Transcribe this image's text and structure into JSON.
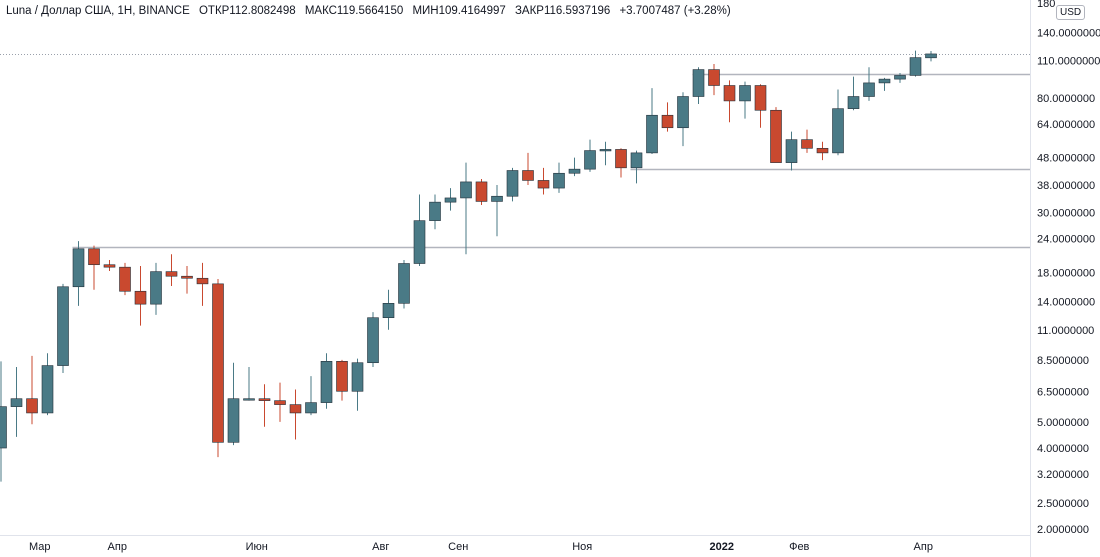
{
  "legend": {
    "symbol": "Luna / Доллар США, 1Н, BINANCE",
    "open": "ОТКР112.8082498",
    "high": "МАКС119.5664150",
    "low": "МИН109.4164997",
    "close": "ЗАКР116.5937196",
    "change": "+3.7007487 (+3.28%)"
  },
  "currency": "USD",
  "colors": {
    "up": "#4a7a86",
    "down": "#c9492f",
    "grid_line": "#b2b5be",
    "text": "#131722"
  },
  "chart_data": {
    "type": "candlestick",
    "scale": "log",
    "ylim": [
      1.9,
      185
    ],
    "y_ticks": [
      {
        "v": 180,
        "label": "180"
      },
      {
        "v": 140,
        "label": "140.0000000"
      },
      {
        "v": 110,
        "label": "110.0000000"
      },
      {
        "v": 80,
        "label": "80.0000000"
      },
      {
        "v": 64,
        "label": "64.0000000"
      },
      {
        "v": 48,
        "label": "48.0000000"
      },
      {
        "v": 38,
        "label": "38.0000000"
      },
      {
        "v": 30,
        "label": "30.0000000"
      },
      {
        "v": 24,
        "label": "24.0000000"
      },
      {
        "v": 18,
        "label": "18.0000000"
      },
      {
        "v": 14,
        "label": "14.0000000"
      },
      {
        "v": 11,
        "label": "11.0000000"
      },
      {
        "v": 8.5,
        "label": "8.5000000"
      },
      {
        "v": 6.5,
        "label": "6.5000000"
      },
      {
        "v": 5,
        "label": "5.0000000"
      },
      {
        "v": 4,
        "label": "4.0000000"
      },
      {
        "v": 3.2,
        "label": "3.2000000"
      },
      {
        "v": 2.5,
        "label": "2.5000000"
      },
      {
        "v": 2,
        "label": "2.0000000"
      }
    ],
    "x_ticks": [
      {
        "i": 2.5,
        "label": "Мар"
      },
      {
        "i": 7.5,
        "label": "Апр"
      },
      {
        "i": 16.5,
        "label": "Июн"
      },
      {
        "i": 24.5,
        "label": "Авг"
      },
      {
        "i": 29.5,
        "label": "Сен"
      },
      {
        "i": 37.5,
        "label": "Ноя"
      },
      {
        "i": 46.5,
        "label": "2022",
        "bold": true
      },
      {
        "i": 51.5,
        "label": "Фев"
      },
      {
        "i": 59.5,
        "label": "Апр"
      }
    ],
    "hlines": [
      {
        "v": 22.3,
        "from": 5
      },
      {
        "v": 43.5,
        "from": 41
      },
      {
        "v": 98.5,
        "from": 45
      }
    ],
    "last_price": 116.6,
    "candles": [
      {
        "o": 4.0,
        "h": 8.4,
        "l": 3.0,
        "c": 5.7
      },
      {
        "o": 5.7,
        "h": 8.0,
        "l": 4.4,
        "c": 6.1
      },
      {
        "o": 6.1,
        "h": 8.8,
        "l": 4.9,
        "c": 5.4
      },
      {
        "o": 5.4,
        "h": 9.0,
        "l": 5.3,
        "c": 8.1
      },
      {
        "o": 8.1,
        "h": 16.3,
        "l": 7.6,
        "c": 15.9
      },
      {
        "o": 15.9,
        "h": 23.5,
        "l": 13.5,
        "c": 22.0
      },
      {
        "o": 22.0,
        "h": 22.6,
        "l": 15.5,
        "c": 19.2
      },
      {
        "o": 19.2,
        "h": 20.0,
        "l": 18.2,
        "c": 18.8
      },
      {
        "o": 18.8,
        "h": 19.5,
        "l": 14.8,
        "c": 15.3
      },
      {
        "o": 15.3,
        "h": 19.0,
        "l": 11.4,
        "c": 13.7
      },
      {
        "o": 13.7,
        "h": 19.5,
        "l": 12.5,
        "c": 18.1
      },
      {
        "o": 18.1,
        "h": 21.0,
        "l": 16.0,
        "c": 17.4
      },
      {
        "o": 17.4,
        "h": 19.0,
        "l": 15.0,
        "c": 17.1
      },
      {
        "o": 17.1,
        "h": 19.5,
        "l": 13.5,
        "c": 16.3
      },
      {
        "o": 16.3,
        "h": 17.0,
        "l": 3.7,
        "c": 4.2
      },
      {
        "o": 4.2,
        "h": 8.3,
        "l": 4.1,
        "c": 6.1
      },
      {
        "o": 6.1,
        "h": 8.0,
        "l": 6.0,
        "c": 6.1
      },
      {
        "o": 6.1,
        "h": 6.9,
        "l": 4.8,
        "c": 6.0
      },
      {
        "o": 6.0,
        "h": 7.0,
        "l": 5.0,
        "c": 5.8
      },
      {
        "o": 5.8,
        "h": 6.6,
        "l": 4.3,
        "c": 5.4
      },
      {
        "o": 5.4,
        "h": 7.4,
        "l": 5.3,
        "c": 5.9
      },
      {
        "o": 5.9,
        "h": 9.0,
        "l": 5.6,
        "c": 8.4
      },
      {
        "o": 8.4,
        "h": 8.5,
        "l": 6.0,
        "c": 6.5
      },
      {
        "o": 6.5,
        "h": 8.6,
        "l": 5.5,
        "c": 8.3
      },
      {
        "o": 8.3,
        "h": 12.8,
        "l": 8.0,
        "c": 12.2
      },
      {
        "o": 12.2,
        "h": 15.5,
        "l": 11.0,
        "c": 13.8
      },
      {
        "o": 13.8,
        "h": 20.0,
        "l": 13.2,
        "c": 19.4
      },
      {
        "o": 19.4,
        "h": 35.0,
        "l": 19.0,
        "c": 28.0
      },
      {
        "o": 28.0,
        "h": 35.0,
        "l": 26.0,
        "c": 32.8
      },
      {
        "o": 32.8,
        "h": 37.0,
        "l": 30.5,
        "c": 34.0
      },
      {
        "o": 34.0,
        "h": 46.0,
        "l": 21.0,
        "c": 39.0
      },
      {
        "o": 39.0,
        "h": 40.0,
        "l": 32.0,
        "c": 33.0
      },
      {
        "o": 33.0,
        "h": 38.0,
        "l": 24.5,
        "c": 34.5
      },
      {
        "o": 34.5,
        "h": 44.0,
        "l": 33.0,
        "c": 43.0
      },
      {
        "o": 43.0,
        "h": 50.0,
        "l": 38.0,
        "c": 39.5
      },
      {
        "o": 39.5,
        "h": 44.0,
        "l": 35.0,
        "c": 37.0
      },
      {
        "o": 37.0,
        "h": 46.0,
        "l": 35.5,
        "c": 42.0
      },
      {
        "o": 42.0,
        "h": 48.0,
        "l": 41.0,
        "c": 43.5
      },
      {
        "o": 43.5,
        "h": 56.0,
        "l": 42.5,
        "c": 51.0
      },
      {
        "o": 51.0,
        "h": 55.0,
        "l": 45.0,
        "c": 51.5
      },
      {
        "o": 51.5,
        "h": 52.0,
        "l": 40.5,
        "c": 44.0
      },
      {
        "o": 44.0,
        "h": 51.0,
        "l": 38.5,
        "c": 50.0
      },
      {
        "o": 50.0,
        "h": 87.0,
        "l": 49.5,
        "c": 69.0
      },
      {
        "o": 69.0,
        "h": 77.0,
        "l": 60.0,
        "c": 62.0
      },
      {
        "o": 62.0,
        "h": 84.0,
        "l": 53.0,
        "c": 81.0
      },
      {
        "o": 81.0,
        "h": 104.0,
        "l": 76.0,
        "c": 102.0
      },
      {
        "o": 102.0,
        "h": 107.0,
        "l": 82.0,
        "c": 89.0
      },
      {
        "o": 89.0,
        "h": 93.0,
        "l": 65.0,
        "c": 78.0
      },
      {
        "o": 78.0,
        "h": 92.0,
        "l": 67.0,
        "c": 89.0
      },
      {
        "o": 89.0,
        "h": 90.0,
        "l": 62.0,
        "c": 72.0
      },
      {
        "o": 72.0,
        "h": 74.0,
        "l": 46.0,
        "c": 46.0
      },
      {
        "o": 46.0,
        "h": 60.0,
        "l": 43.0,
        "c": 56.0
      },
      {
        "o": 56.0,
        "h": 61.0,
        "l": 50.0,
        "c": 52.0
      },
      {
        "o": 52.0,
        "h": 55.0,
        "l": 47.0,
        "c": 50.0
      },
      {
        "o": 50.0,
        "h": 86.0,
        "l": 49.0,
        "c": 73.0
      },
      {
        "o": 73.0,
        "h": 96.0,
        "l": 72.0,
        "c": 81.0
      },
      {
        "o": 81.0,
        "h": 104.0,
        "l": 78.0,
        "c": 91.0
      },
      {
        "o": 91.0,
        "h": 95.0,
        "l": 85.0,
        "c": 94.0
      },
      {
        "o": 94.0,
        "h": 99.0,
        "l": 91.0,
        "c": 97.0
      },
      {
        "o": 97.0,
        "h": 120.0,
        "l": 96.0,
        "c": 113.0
      },
      {
        "o": 112.8,
        "h": 119.6,
        "l": 109.4,
        "c": 116.6
      }
    ]
  }
}
